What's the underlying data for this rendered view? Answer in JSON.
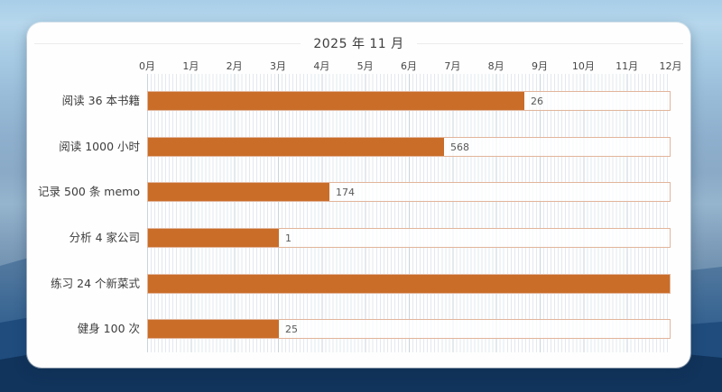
{
  "chart_data": {
    "type": "bar",
    "orientation": "horizontal",
    "title": "2025 年 11 月",
    "categories": [
      "阅读 36 本书籍",
      "阅读 1000 小时",
      "记录 500 条 memo",
      "分析 4 家公司",
      "练习 24 个新菜式",
      "健身 100 次"
    ],
    "values": [
      26,
      568,
      174,
      1,
      null,
      25
    ],
    "data_labels": [
      "26",
      "568",
      "174",
      "1",
      "",
      "25"
    ],
    "progress_fraction": [
      0.722,
      0.568,
      0.348,
      0.25,
      1,
      0.25
    ],
    "x_tick_labels": [
      "0月",
      "1月",
      "2月",
      "3月",
      "4月",
      "5月",
      "6月",
      "7月",
      "8月",
      "9月",
      "10月",
      "11月",
      "12月"
    ],
    "xlim": [
      0,
      12
    ],
    "grid": true,
    "legend": false,
    "colors": {
      "bar_fill": "#c96d29",
      "track_border": "#e2b59b",
      "grid_minor": "#e3e9ef",
      "grid_major": "#c9d4de",
      "title_text": "#3d3d3d",
      "value_label": "#595959",
      "panel_background": "#fefefe"
    }
  }
}
